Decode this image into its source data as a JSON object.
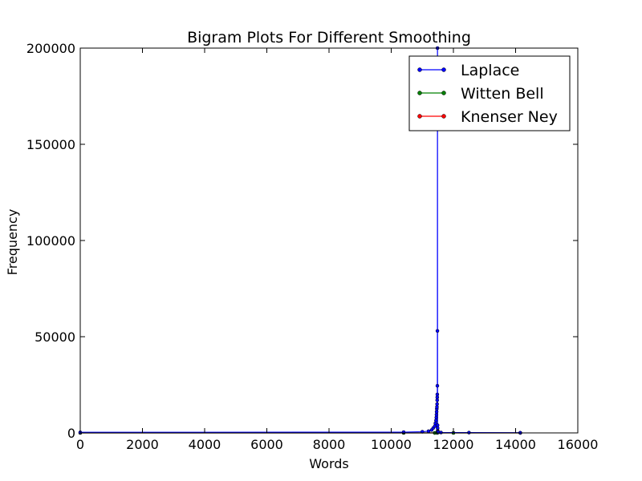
{
  "chart_data": {
    "type": "line",
    "title": "Bigram Plots For Different Smoothing",
    "xlabel": "Words",
    "ylabel": "Frequency",
    "xlim": [
      0,
      16000
    ],
    "ylim": [
      0,
      200000
    ],
    "xticks": [
      "0",
      "2000",
      "4000",
      "6000",
      "8000",
      "10000",
      "12000",
      "14000",
      "16000"
    ],
    "yticks": [
      "0",
      "50000",
      "100000",
      "150000",
      "200000"
    ],
    "legend_position": "top-right",
    "grid": false,
    "series": [
      {
        "name": "Laplace",
        "color": "#0000ff",
        "x": [
          0,
          10400,
          11000,
          11200,
          11300,
          11350,
          11400,
          11420,
          11440,
          11450,
          11455,
          11460,
          11465,
          11470,
          11475,
          11478,
          11480,
          11482,
          11484,
          11486,
          11488,
          11490,
          11492,
          11494,
          11497,
          11500,
          11520,
          11600,
          12500,
          14150
        ],
        "y": [
          300,
          400,
          600,
          900,
          1500,
          2500,
          3500,
          5000,
          6500,
          8000,
          9500,
          11000,
          12500,
          13500,
          15000,
          17000,
          18500,
          20000,
          24500,
          53000,
          200000,
          4000,
          2500,
          1200,
          800,
          500,
          300,
          200,
          150,
          100
        ]
      },
      {
        "name": "Witten Bell",
        "color": "#008000",
        "x": [
          0,
          10400,
          11400,
          11480,
          12000,
          14150
        ],
        "y": [
          0,
          0,
          0,
          0,
          0,
          0
        ]
      },
      {
        "name": "Knenser Ney",
        "color": "#ff0000",
        "x": [
          0,
          10400,
          11400,
          11480,
          12000,
          14150
        ],
        "y": [
          0,
          0,
          0,
          0,
          0,
          0
        ]
      }
    ]
  }
}
